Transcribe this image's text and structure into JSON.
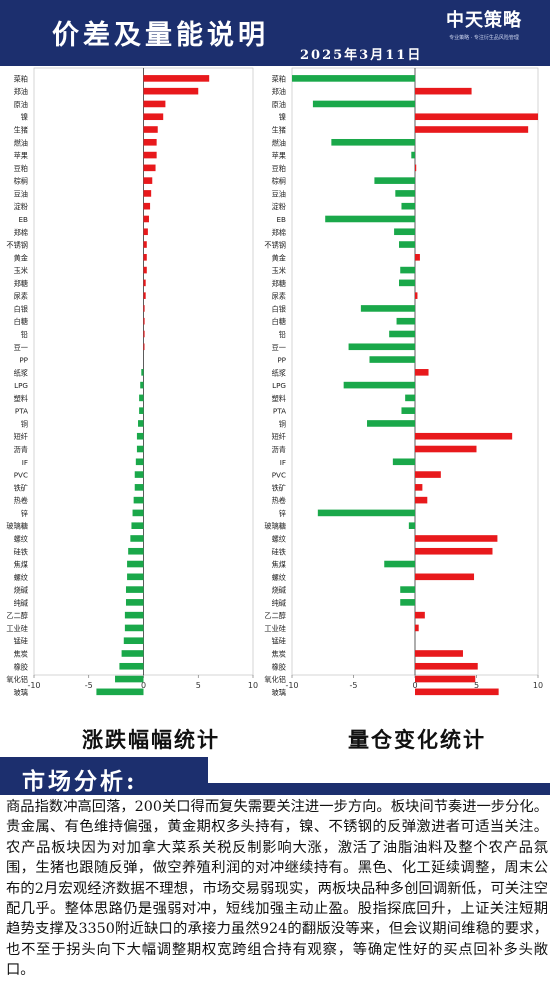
{
  "header": {
    "title": "价差及量能说明",
    "date": "2025年3月11日",
    "logo_text": "中天策略",
    "logo_slogan": "专业策略 · 专注衍生品风险管理"
  },
  "chart_titles": {
    "left": "涨跌幅幅统计",
    "right": "量仓变化统计"
  },
  "chart_data": [
    {
      "type": "bar",
      "orientation": "horizontal",
      "categories": [
        "菜粕",
        "郑油",
        "原油",
        "镍",
        "生猪",
        "燃油",
        "苹果",
        "豆粕",
        "棕榈",
        "豆油",
        "淀粉",
        "EB",
        "郑棉",
        "不锈钢",
        "黄金",
        "玉米",
        "郑糖",
        "尿素",
        "白银",
        "白糖",
        "铅",
        "豆一",
        "PP",
        "纸浆",
        "LPG",
        "塑料",
        "PTA",
        "铜",
        "短纤",
        "沥青",
        "IF",
        "PVC",
        "铁矿",
        "热卷",
        "锌",
        "玻璃糖",
        "螺纹",
        "硅铁",
        "焦煤",
        "螺纹",
        "烧碱",
        "纯碱",
        "乙二醇",
        "工业硅",
        "锰硅",
        "焦炭",
        "橡胶",
        "氧化铝",
        "玻璃"
      ],
      "values": [
        6.0,
        5.0,
        2.0,
        1.8,
        1.3,
        1.2,
        1.2,
        1.1,
        0.8,
        0.7,
        0.6,
        0.5,
        0.4,
        0.3,
        0.3,
        0.3,
        0.2,
        0.2,
        0.1,
        0.1,
        0.1,
        0.05,
        0.0,
        -0.2,
        -0.3,
        -0.4,
        -0.4,
        -0.5,
        -0.6,
        -0.6,
        -0.7,
        -0.8,
        -0.8,
        -0.9,
        -1.0,
        -1.1,
        -1.2,
        -1.4,
        -1.5,
        -1.5,
        -1.6,
        -1.6,
        -1.7,
        -1.7,
        -1.8,
        -2.0,
        -2.2,
        -2.6,
        -4.3
      ],
      "xlim": [
        -10,
        10
      ],
      "xticks": [
        "-10",
        "-5",
        "0",
        "5",
        "10"
      ],
      "colors": {
        "positive": "#e8191c",
        "negative": "#1aa84a"
      }
    },
    {
      "type": "bar",
      "orientation": "horizontal",
      "categories": [
        "菜粕",
        "郑油",
        "原油",
        "镍",
        "生猪",
        "燃油",
        "苹果",
        "豆粕",
        "棕榈",
        "豆油",
        "淀粉",
        "EB",
        "郑棉",
        "不锈钢",
        "黄金",
        "玉米",
        "郑糖",
        "尿素",
        "白银",
        "白糖",
        "铅",
        "豆一",
        "PP",
        "纸浆",
        "LPG",
        "塑料",
        "PTA",
        "铜",
        "短纤",
        "沥青",
        "IF",
        "PVC",
        "铁矿",
        "热卷",
        "锌",
        "玻璃糖",
        "螺纹",
        "硅铁",
        "焦煤",
        "螺纹",
        "烧碱",
        "纯碱",
        "乙二醇",
        "工业硅",
        "锰硅",
        "焦炭",
        "橡胶",
        "氧化铝",
        "玻璃"
      ],
      "values": [
        -10.0,
        4.6,
        -8.3,
        10.0,
        9.2,
        -6.8,
        -0.3,
        0.1,
        -3.3,
        -1.6,
        -1.1,
        -7.3,
        -1.7,
        -1.3,
        0.4,
        -1.2,
        -1.3,
        0.2,
        -4.4,
        -1.5,
        -2.1,
        -5.4,
        -3.7,
        1.1,
        -5.8,
        -0.8,
        -1.1,
        -3.9,
        7.9,
        5.0,
        -1.8,
        2.1,
        0.6,
        1.0,
        -7.9,
        -0.5,
        6.7,
        6.3,
        -2.5,
        4.8,
        -1.2,
        -1.2,
        0.8,
        0.3,
        0.0,
        3.9,
        5.1,
        4.9,
        6.8
      ],
      "xlim": [
        -10,
        10
      ],
      "xticks": [
        "-10",
        "-5",
        "0",
        "5",
        "10"
      ],
      "colors": {
        "positive": "#e8191c",
        "negative": "#1aa84a"
      }
    }
  ],
  "analysis": {
    "title": "市场分析:",
    "text": "商品指数冲高回落，200关口得而复失需要关注进一步方向。板块间节奏进一步分化。贵金属、有色维持偏强，黄金期权多头持有，镍、不锈钢的反弹激进者可适当关注。农产品板块因为对加拿大菜系关税反制影响大涨，激活了油脂油料及整个农产品氛围，生猪也跟随反弹，做空养殖利润的对冲继续持有。黑色、化工延续调整，周末公布的2月宏观经济数据不理想，市场交易弱现实，两板块品种多创回调新低，可关注空配几乎。整体思路仍是强弱对冲，短线加强主动止盈。股指探底回升，上证关注短期趋势支撑及3350附近缺口的承接力虽然924的翻版没等来，但会议期间维稳的要求，也不至于拐头向下大幅调整期权宽跨组合持有观察，等确定性好的买点回补多头敞口。"
  }
}
